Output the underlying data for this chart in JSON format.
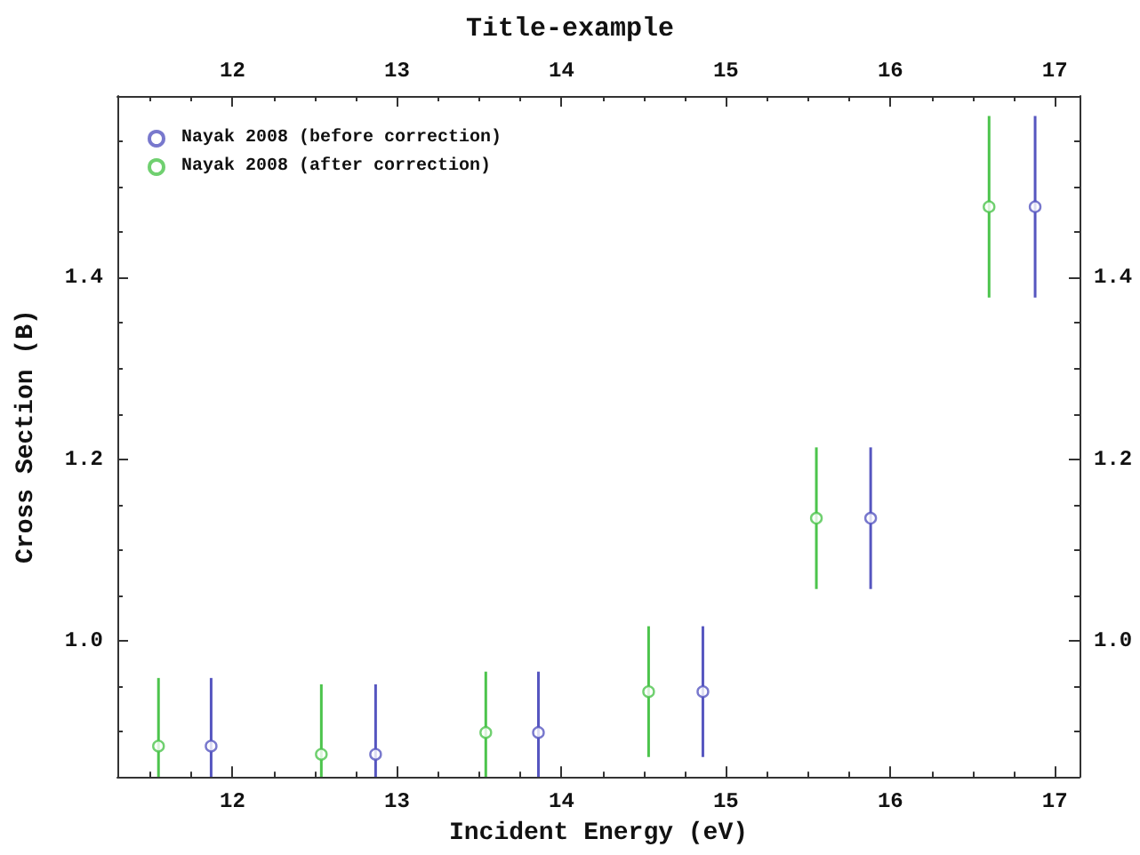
{
  "chart_data": {
    "type": "scatter",
    "title": "Title-example",
    "xlabel": "Incident Energy (eV)",
    "ylabel": "Cross Section (B)",
    "xlim": [
      11.3,
      17.15
    ],
    "xticks": [
      12,
      13,
      14,
      15,
      16,
      17
    ],
    "x2lim": [
      11.3,
      17.15
    ],
    "x2ticks": [
      12,
      13,
      14,
      15,
      16,
      17
    ],
    "ylim": [
      0.85,
      1.6
    ],
    "yticks": [
      {
        "value": 1,
        "label": "1.0"
      },
      {
        "value": 1.2,
        "label": "1.2"
      },
      {
        "value": 1.4,
        "label": "1.4"
      }
    ],
    "y2lim": [
      0.85,
      1.6
    ],
    "y2ticks": [
      {
        "value": 1,
        "label": "1.0"
      },
      {
        "value": 1.2,
        "label": "1.2"
      },
      {
        "value": 1.4,
        "label": "1.4"
      }
    ],
    "legend": "top left",
    "grid": false,
    "marker": "circle",
    "series": [
      {
        "name": "Nayak 2008 (before correction)",
        "color": "#5656c0",
        "x": [
          11.87,
          12.87,
          13.86,
          14.86,
          15.88,
          16.88
        ],
        "values": [
          0.884,
          0.875,
          0.899,
          0.944,
          1.135,
          1.478
        ],
        "errors": [
          [
            0.85,
            0.959
          ],
          [
            0.85,
            0.952
          ],
          [
            0.85,
            0.966
          ],
          0.072,
          0.078,
          0.1
        ]
      },
      {
        "name": "Nayak 2008 (after correction)",
        "color": "#4cc44c",
        "x": [
          11.55,
          12.54,
          13.54,
          14.53,
          15.55,
          16.6
        ],
        "values": [
          0.884,
          0.875,
          0.899,
          0.944,
          1.135,
          1.478
        ],
        "errors": [
          [
            0.85,
            0.959
          ],
          [
            0.85,
            0.952
          ],
          [
            0.85,
            0.966
          ],
          0.072,
          0.078,
          0.1
        ]
      }
    ]
  }
}
